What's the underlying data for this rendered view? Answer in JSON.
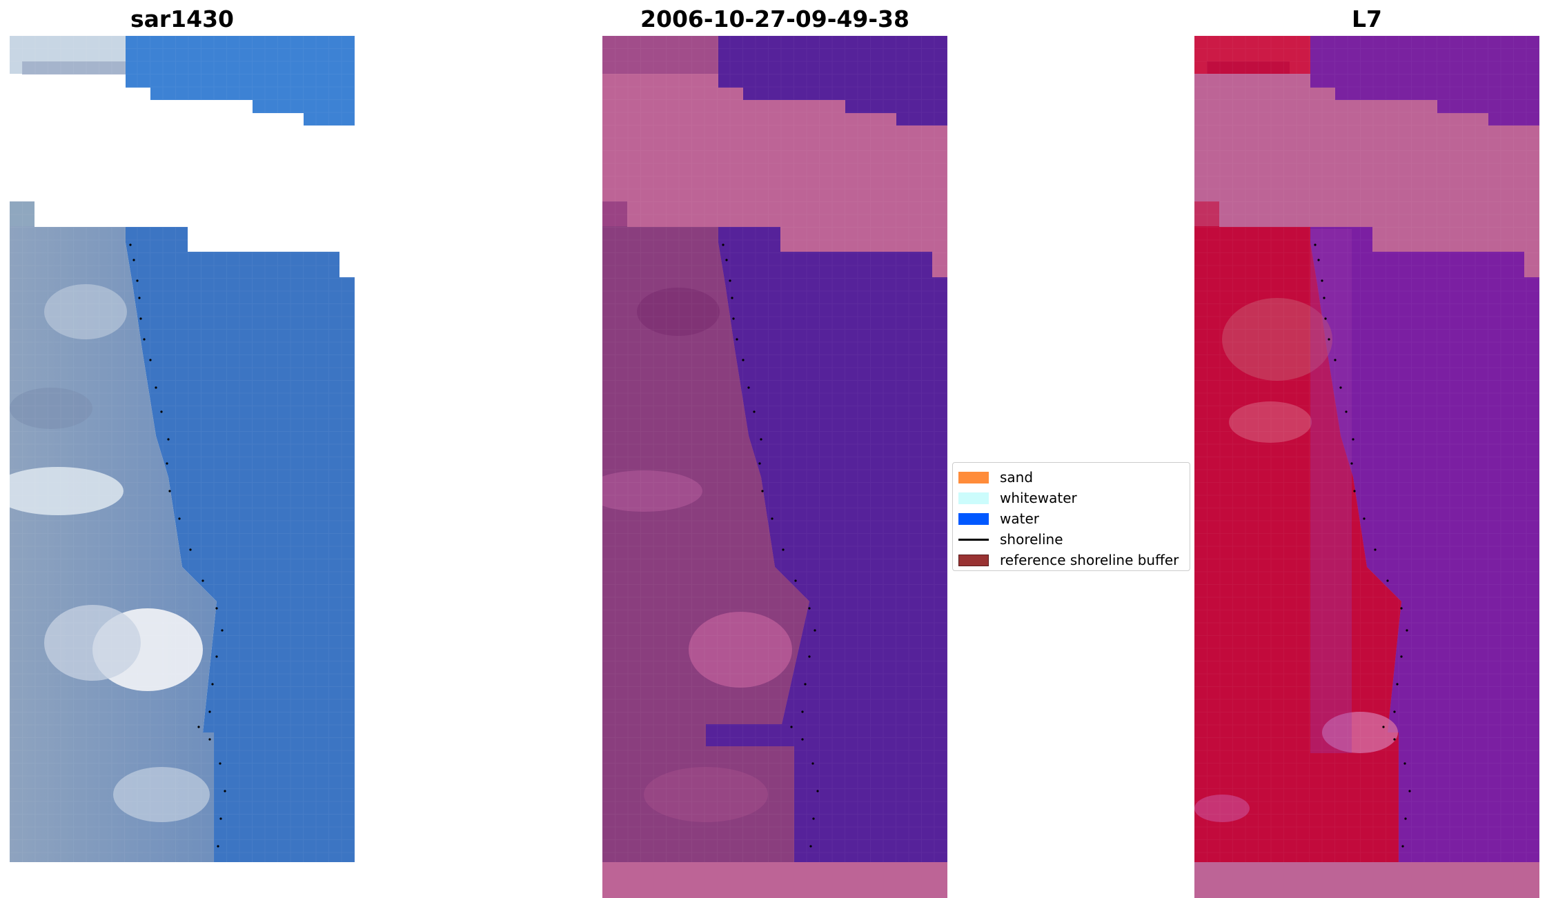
{
  "panels": {
    "rgb": {
      "title": "sar1430"
    },
    "classification": {
      "title": "2006-10-27-09-49-38"
    },
    "ndwi": {
      "title": "L7"
    }
  },
  "legend": {
    "items": [
      {
        "label": "sand",
        "color": "#ff8c3a"
      },
      {
        "label": "whitewater",
        "color": "#ccfcfc"
      },
      {
        "label": "water",
        "color": "#0058ff"
      },
      {
        "label": "shoreline",
        "color": "#000000"
      },
      {
        "label": "reference shoreline buffer",
        "color": "#993333"
      }
    ]
  },
  "colors": {
    "rgb_water": "#3d78c8",
    "rgb_land": "#7f96b8",
    "class_water": "#56229a",
    "class_land": "#8a3e7e",
    "class_cloud": "#bd6496",
    "ndwi_water": "#7a22a0",
    "ndwi_land": "#c20a3c",
    "ndwi_cloud": "#bd6496"
  }
}
